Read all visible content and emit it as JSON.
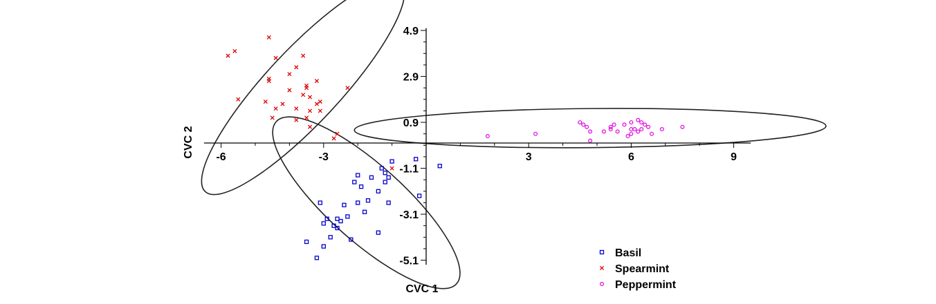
{
  "chart_data": {
    "type": "scatter",
    "title": "",
    "xlabel": "CVC 1",
    "ylabel": "CVC 2",
    "xlim": [
      -6.4,
      9.5
    ],
    "ylim": [
      -5.3,
      5.0
    ],
    "x_ticks": [
      {
        "value": -6,
        "label": "-6"
      },
      {
        "value": -3,
        "label": "-3"
      },
      {
        "value": 3,
        "label": "3"
      },
      {
        "value": 6,
        "label": "6"
      },
      {
        "value": 9,
        "label": "9"
      }
    ],
    "y_ticks": [
      {
        "value": 4.9,
        "label": "4.9"
      },
      {
        "value": 2.9,
        "label": "2.9"
      },
      {
        "value": 0.9,
        "label": "0.9"
      },
      {
        "value": -1.1,
        "label": "-1.1"
      },
      {
        "value": -3.1,
        "label": "-3.1"
      },
      {
        "value": -5.1,
        "label": "-5.1"
      }
    ],
    "legend_position": "bottom-right",
    "series": [
      {
        "name": "Basil",
        "marker": "square",
        "color": "#0000cc",
        "points": [
          [
            -0.3,
            -0.7
          ],
          [
            0.4,
            -1.0
          ],
          [
            -1.0,
            -0.8
          ],
          [
            -1.3,
            -1.1
          ],
          [
            -1.6,
            -1.5
          ],
          [
            -1.2,
            -1.3
          ],
          [
            -1.1,
            -1.5
          ],
          [
            -1.2,
            -1.7
          ],
          [
            -2.0,
            -1.4
          ],
          [
            -2.1,
            -1.7
          ],
          [
            -1.9,
            -1.9
          ],
          [
            -1.4,
            -2.1
          ],
          [
            -0.2,
            -2.3
          ],
          [
            -1.7,
            -2.5
          ],
          [
            -2.0,
            -2.6
          ],
          [
            -1.1,
            -2.6
          ],
          [
            -3.1,
            -2.6
          ],
          [
            -2.4,
            -2.7
          ],
          [
            -1.8,
            -3.0
          ],
          [
            -2.3,
            -3.2
          ],
          [
            -2.6,
            -3.3
          ],
          [
            -2.9,
            -3.3
          ],
          [
            -2.5,
            -3.4
          ],
          [
            -3.0,
            -3.5
          ],
          [
            -2.7,
            -3.6
          ],
          [
            -2.6,
            -3.7
          ],
          [
            -1.4,
            -3.9
          ],
          [
            -2.8,
            -4.1
          ],
          [
            -2.2,
            -4.2
          ],
          [
            -3.5,
            -4.3
          ],
          [
            -3.0,
            -4.5
          ],
          [
            -3.2,
            -5.0
          ]
        ]
      },
      {
        "name": "Spearmint",
        "marker": "x",
        "color": "#e00000",
        "points": [
          [
            -4.6,
            4.6
          ],
          [
            -5.6,
            4.0
          ],
          [
            -5.8,
            3.8
          ],
          [
            -3.6,
            3.8
          ],
          [
            -4.4,
            3.7
          ],
          [
            -3.8,
            3.3
          ],
          [
            -4.0,
            3.0
          ],
          [
            -4.6,
            2.8
          ],
          [
            -4.6,
            2.7
          ],
          [
            -3.2,
            2.7
          ],
          [
            -3.5,
            2.5
          ],
          [
            -3.5,
            2.4
          ],
          [
            -2.3,
            2.4
          ],
          [
            -4.0,
            2.3
          ],
          [
            -3.6,
            2.1
          ],
          [
            -3.4,
            2.0
          ],
          [
            -5.5,
            1.9
          ],
          [
            -4.7,
            1.8
          ],
          [
            -3.1,
            1.8
          ],
          [
            -3.2,
            1.7
          ],
          [
            -4.2,
            1.7
          ],
          [
            -3.8,
            1.5
          ],
          [
            -4.4,
            1.5
          ],
          [
            -3.4,
            1.4
          ],
          [
            -3.1,
            1.4
          ],
          [
            -3.5,
            1.1
          ],
          [
            -4.5,
            1.1
          ],
          [
            -3.8,
            1.0
          ],
          [
            -3.4,
            0.7
          ],
          [
            -2.6,
            0.4
          ],
          [
            -2.7,
            0.2
          ],
          [
            -1.0,
            -1.1
          ]
        ]
      },
      {
        "name": "Peppermint",
        "marker": "circle",
        "color": "#e000e0",
        "points": [
          [
            6.2,
            1.0
          ],
          [
            6.3,
            0.9
          ],
          [
            5.5,
            0.8
          ],
          [
            5.8,
            0.8
          ],
          [
            6.5,
            0.7
          ],
          [
            7.5,
            0.7
          ],
          [
            6.0,
            0.9
          ],
          [
            6.4,
            0.8
          ],
          [
            4.5,
            0.9
          ],
          [
            4.6,
            0.8
          ],
          [
            4.7,
            0.7
          ],
          [
            5.4,
            0.7
          ],
          [
            6.0,
            0.6
          ],
          [
            6.2,
            0.5
          ],
          [
            6.1,
            0.6
          ],
          [
            6.6,
            0.4
          ],
          [
            6.3,
            0.6
          ],
          [
            6.9,
            0.6
          ],
          [
            5.4,
            0.6
          ],
          [
            5.6,
            0.5
          ],
          [
            5.2,
            0.5
          ],
          [
            4.8,
            0.5
          ],
          [
            6.0,
            0.4
          ],
          [
            5.9,
            0.3
          ],
          [
            3.2,
            0.4
          ],
          [
            1.8,
            0.3
          ],
          [
            4.8,
            0.1
          ]
        ]
      }
    ],
    "ellipses": [
      {
        "series": "Spearmint",
        "cx": -3.6,
        "cy": 2.45,
        "rx": 4.2,
        "ry": 1.6,
        "angle_deg": -47
      },
      {
        "series": "Basil",
        "cx": -1.75,
        "cy": -2.6,
        "rx": 3.55,
        "ry": 1.65,
        "angle_deg": 42
      },
      {
        "series": "Peppermint",
        "cx": 4.8,
        "cy": 0.65,
        "rx": 6.9,
        "ry": 0.85,
        "angle_deg": -0.5
      }
    ]
  }
}
